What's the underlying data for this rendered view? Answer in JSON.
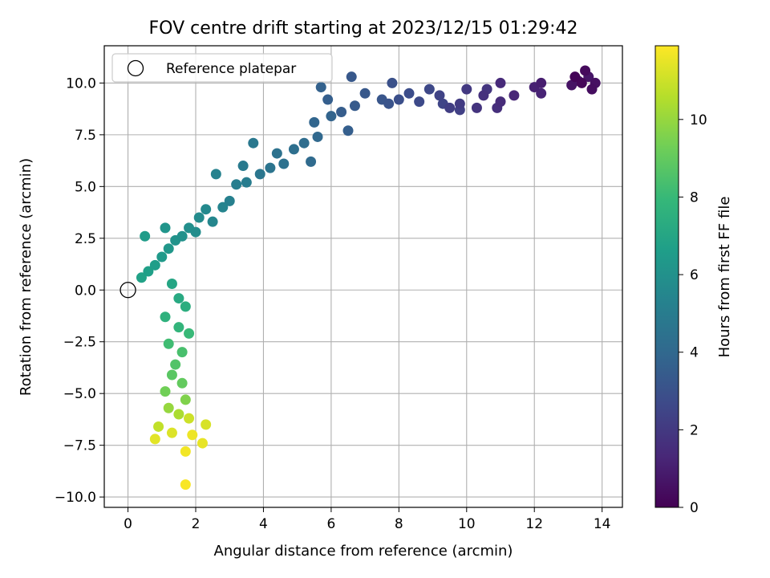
{
  "chart_data": {
    "type": "scatter",
    "title": "FOV centre drift starting at 2023/12/15 01:29:42",
    "xlabel": "Angular distance from reference (arcmin)",
    "ylabel": "Rotation from reference (arcmin)",
    "xlim": [
      -0.7,
      14.6
    ],
    "ylim": [
      -10.5,
      11.8
    ],
    "xticks": [
      0,
      2,
      4,
      6,
      8,
      10,
      12,
      14
    ],
    "xtick_labels": [
      "0",
      "2",
      "4",
      "6",
      "8",
      "10",
      "12",
      "14"
    ],
    "yticks": [
      -10,
      -7.5,
      -5,
      -2.5,
      0,
      2.5,
      5,
      7.5,
      10
    ],
    "ytick_labels": [
      "−10.0",
      "−7.5",
      "−5.0",
      "−2.5",
      "0.0",
      "2.5",
      "5.0",
      "7.5",
      "10.0"
    ],
    "grid": true,
    "legend": {
      "position": "top-left",
      "entries": [
        "Reference platepar"
      ]
    },
    "reference_point": {
      "name": "Reference platepar",
      "x": 0,
      "y": 0
    },
    "colorbar": {
      "label": "Hours from first FF file",
      "colormap": "viridis",
      "range": [
        0,
        11.9
      ],
      "ticks": [
        0,
        2,
        4,
        6,
        8,
        10
      ],
      "tick_labels": [
        "0",
        "2",
        "4",
        "6",
        "8",
        "10"
      ]
    },
    "colormap_stops": [
      "#440154",
      "#482878",
      "#3e4989",
      "#31688e",
      "#26828e",
      "#1f9e89",
      "#35b779",
      "#6ece58",
      "#b5de2b",
      "#fde725"
    ],
    "points": [
      {
        "x": 13.2,
        "y": 10.3,
        "h": 0.1
      },
      {
        "x": 13.4,
        "y": 10.0,
        "h": 0.2
      },
      {
        "x": 13.5,
        "y": 10.6,
        "h": 0.3
      },
      {
        "x": 13.7,
        "y": 9.7,
        "h": 0.4
      },
      {
        "x": 13.8,
        "y": 10.0,
        "h": 0.5
      },
      {
        "x": 13.1,
        "y": 9.9,
        "h": 0.6
      },
      {
        "x": 13.6,
        "y": 10.3,
        "h": 0.7
      },
      {
        "x": 13.3,
        "y": 10.1,
        "h": 0.8
      },
      {
        "x": 12.2,
        "y": 10.0,
        "h": 1.0
      },
      {
        "x": 12.0,
        "y": 9.8,
        "h": 1.1
      },
      {
        "x": 12.2,
        "y": 9.5,
        "h": 1.2
      },
      {
        "x": 11.4,
        "y": 9.4,
        "h": 1.3
      },
      {
        "x": 11.0,
        "y": 10.0,
        "h": 1.4
      },
      {
        "x": 11.0,
        "y": 9.1,
        "h": 1.5
      },
      {
        "x": 10.9,
        "y": 8.8,
        "h": 1.6
      },
      {
        "x": 10.5,
        "y": 9.4,
        "h": 1.7
      },
      {
        "x": 10.3,
        "y": 8.8,
        "h": 1.8
      },
      {
        "x": 10.6,
        "y": 9.7,
        "h": 1.9
      },
      {
        "x": 10.0,
        "y": 9.7,
        "h": 2.0
      },
      {
        "x": 9.8,
        "y": 9.0,
        "h": 2.1
      },
      {
        "x": 9.5,
        "y": 8.8,
        "h": 2.2
      },
      {
        "x": 9.8,
        "y": 8.7,
        "h": 2.3
      },
      {
        "x": 9.2,
        "y": 9.4,
        "h": 2.4
      },
      {
        "x": 9.3,
        "y": 9.0,
        "h": 2.5
      },
      {
        "x": 8.9,
        "y": 9.7,
        "h": 2.6
      },
      {
        "x": 8.6,
        "y": 9.1,
        "h": 2.7
      },
      {
        "x": 8.3,
        "y": 9.5,
        "h": 2.8
      },
      {
        "x": 8.0,
        "y": 9.2,
        "h": 2.9
      },
      {
        "x": 7.8,
        "y": 10.0,
        "h": 3.0
      },
      {
        "x": 7.7,
        "y": 9.0,
        "h": 3.1
      },
      {
        "x": 7.5,
        "y": 9.2,
        "h": 3.2
      },
      {
        "x": 7.0,
        "y": 9.5,
        "h": 3.3
      },
      {
        "x": 6.6,
        "y": 10.3,
        "h": 3.3
      },
      {
        "x": 6.7,
        "y": 8.9,
        "h": 3.4
      },
      {
        "x": 6.3,
        "y": 8.6,
        "h": 3.5
      },
      {
        "x": 6.5,
        "y": 7.7,
        "h": 3.6
      },
      {
        "x": 5.9,
        "y": 9.2,
        "h": 3.6
      },
      {
        "x": 5.7,
        "y": 9.8,
        "h": 3.7
      },
      {
        "x": 6.0,
        "y": 8.4,
        "h": 3.8
      },
      {
        "x": 5.5,
        "y": 8.1,
        "h": 3.9
      },
      {
        "x": 5.6,
        "y": 7.4,
        "h": 4.0
      },
      {
        "x": 5.4,
        "y": 6.2,
        "h": 4.1
      },
      {
        "x": 5.2,
        "y": 7.1,
        "h": 4.2
      },
      {
        "x": 4.9,
        "y": 6.8,
        "h": 4.3
      },
      {
        "x": 4.6,
        "y": 6.1,
        "h": 4.4
      },
      {
        "x": 4.4,
        "y": 6.6,
        "h": 4.5
      },
      {
        "x": 4.2,
        "y": 5.9,
        "h": 4.6
      },
      {
        "x": 3.9,
        "y": 5.6,
        "h": 4.7
      },
      {
        "x": 3.7,
        "y": 7.1,
        "h": 4.8
      },
      {
        "x": 3.4,
        "y": 6.0,
        "h": 4.9
      },
      {
        "x": 3.5,
        "y": 5.2,
        "h": 5.0
      },
      {
        "x": 3.2,
        "y": 5.1,
        "h": 5.1
      },
      {
        "x": 3.0,
        "y": 4.3,
        "h": 5.2
      },
      {
        "x": 2.6,
        "y": 5.6,
        "h": 5.3
      },
      {
        "x": 2.8,
        "y": 4.0,
        "h": 5.4
      },
      {
        "x": 2.5,
        "y": 3.3,
        "h": 5.5
      },
      {
        "x": 2.3,
        "y": 3.9,
        "h": 5.6
      },
      {
        "x": 2.1,
        "y": 3.5,
        "h": 5.7
      },
      {
        "x": 2.0,
        "y": 2.8,
        "h": 5.8
      },
      {
        "x": 1.8,
        "y": 3.0,
        "h": 5.9
      },
      {
        "x": 1.6,
        "y": 2.6,
        "h": 6.0
      },
      {
        "x": 1.4,
        "y": 2.4,
        "h": 6.1
      },
      {
        "x": 1.1,
        "y": 3.0,
        "h": 6.2
      },
      {
        "x": 1.2,
        "y": 2.0,
        "h": 6.3
      },
      {
        "x": 1.0,
        "y": 1.6,
        "h": 6.4
      },
      {
        "x": 0.5,
        "y": 2.6,
        "h": 6.5
      },
      {
        "x": 0.8,
        "y": 1.2,
        "h": 6.6
      },
      {
        "x": 0.6,
        "y": 0.9,
        "h": 6.7
      },
      {
        "x": 0.4,
        "y": 0.6,
        "h": 6.8
      },
      {
        "x": 1.3,
        "y": 0.3,
        "h": 7.0
      },
      {
        "x": 1.5,
        "y": -0.4,
        "h": 7.2
      },
      {
        "x": 1.7,
        "y": -0.8,
        "h": 7.4
      },
      {
        "x": 1.1,
        "y": -1.3,
        "h": 7.6
      },
      {
        "x": 1.5,
        "y": -1.8,
        "h": 7.8
      },
      {
        "x": 1.8,
        "y": -2.1,
        "h": 8.0
      },
      {
        "x": 1.2,
        "y": -2.6,
        "h": 8.2
      },
      {
        "x": 1.6,
        "y": -3.0,
        "h": 8.4
      },
      {
        "x": 1.4,
        "y": -3.6,
        "h": 8.6
      },
      {
        "x": 1.3,
        "y": -4.1,
        "h": 8.8
      },
      {
        "x": 1.6,
        "y": -4.5,
        "h": 9.0
      },
      {
        "x": 1.1,
        "y": -4.9,
        "h": 9.3
      },
      {
        "x": 1.7,
        "y": -5.3,
        "h": 9.6
      },
      {
        "x": 1.2,
        "y": -5.7,
        "h": 10.0
      },
      {
        "x": 1.5,
        "y": -6.0,
        "h": 10.4
      },
      {
        "x": 0.9,
        "y": -6.6,
        "h": 10.8
      },
      {
        "x": 1.8,
        "y": -6.2,
        "h": 11.0
      },
      {
        "x": 2.3,
        "y": -6.5,
        "h": 11.2
      },
      {
        "x": 1.3,
        "y": -6.9,
        "h": 11.3
      },
      {
        "x": 0.8,
        "y": -7.2,
        "h": 11.4
      },
      {
        "x": 2.2,
        "y": -7.4,
        "h": 11.5
      },
      {
        "x": 1.9,
        "y": -7.0,
        "h": 11.6
      },
      {
        "x": 1.7,
        "y": -7.8,
        "h": 11.7
      },
      {
        "x": 1.7,
        "y": -9.4,
        "h": 11.8
      }
    ]
  }
}
